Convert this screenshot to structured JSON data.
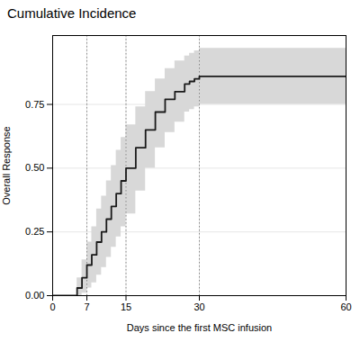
{
  "chart_data": {
    "type": "step",
    "title": "Cumulative Incidence",
    "xlabel": "Days since the first MSC infusion",
    "ylabel": "Overall Response",
    "xlim": [
      0,
      60
    ],
    "ylim": [
      0.0,
      1.02
    ],
    "xticks": [
      0,
      7,
      15,
      30,
      60
    ],
    "yticks": [
      {
        "value": 0.0,
        "label": "0.00"
      },
      {
        "value": 0.25,
        "label": "0.25"
      },
      {
        "value": 0.5,
        "label": "0.50"
      },
      {
        "value": 0.75,
        "label": "0.75"
      }
    ],
    "grid": true,
    "x": [
      0,
      4,
      5,
      6,
      7,
      8,
      9,
      10,
      11,
      12,
      13,
      14,
      15,
      17,
      19,
      21,
      23,
      25,
      27,
      28,
      29,
      30,
      60
    ],
    "series": [
      {
        "type": "area",
        "color": "#d8d8d8",
        "lower": [
          0.0,
          0.0,
          0.0,
          0.01,
          0.03,
          0.05,
          0.08,
          0.11,
          0.15,
          0.19,
          0.23,
          0.27,
          0.32,
          0.41,
          0.5,
          0.58,
          0.64,
          0.68,
          0.72,
          0.73,
          0.74,
          0.75,
          0.75
        ],
        "upper": [
          0.0,
          0.0,
          0.07,
          0.14,
          0.21,
          0.27,
          0.34,
          0.39,
          0.45,
          0.51,
          0.57,
          0.62,
          0.67,
          0.74,
          0.8,
          0.85,
          0.89,
          0.92,
          0.94,
          0.95,
          0.96,
          0.97,
          0.97
        ]
      },
      {
        "type": "line",
        "color": "#1a1a1a",
        "values": [
          0.0,
          0.0,
          0.03,
          0.07,
          0.12,
          0.16,
          0.21,
          0.25,
          0.3,
          0.35,
          0.4,
          0.45,
          0.5,
          0.58,
          0.65,
          0.72,
          0.77,
          0.8,
          0.83,
          0.84,
          0.85,
          0.86,
          0.86
        ]
      }
    ],
    "vlines": {
      "values": [
        7,
        15,
        30
      ],
      "color": "#888888",
      "line_style": "dotted"
    }
  }
}
